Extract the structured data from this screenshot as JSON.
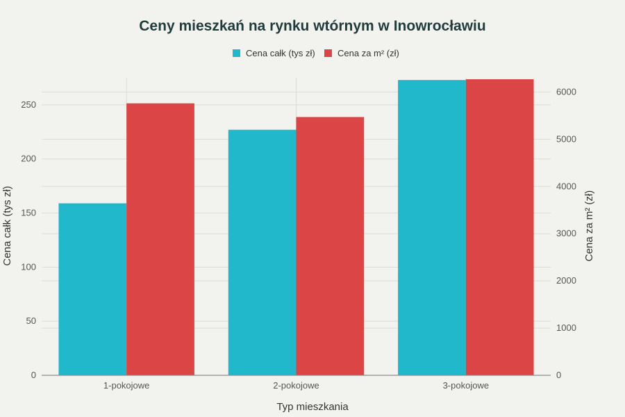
{
  "chart_data": {
    "type": "bar",
    "title": "Ceny mieszkań na rynku wtórnym w Inowrocławiu",
    "xlabel": "Typ mieszkania",
    "ylabel_left": "Cena całk (tys zł)",
    "ylabel_right": "Cena za m² (zł)",
    "categories": [
      "1-pokojowe",
      "2-pokojowe",
      "3-pokojowe"
    ],
    "series": [
      {
        "name": "Cena całk (tys zł)",
        "axis": "left",
        "color": "#22b8cc",
        "values": [
          159,
          227,
          273
        ]
      },
      {
        "name": "Cena za m² (zł)",
        "axis": "right",
        "color": "#db4545",
        "values": [
          5760,
          5470,
          6270
        ]
      }
    ],
    "ylim_left": [
      0,
      275
    ],
    "yticks_left": [
      0,
      50,
      100,
      150,
      200,
      250
    ],
    "ylim_right": [
      0,
      6300
    ],
    "yticks_right": [
      0,
      1000,
      2000,
      3000,
      4000,
      5000,
      6000
    ],
    "grid": true,
    "legend_position": "top-center"
  }
}
